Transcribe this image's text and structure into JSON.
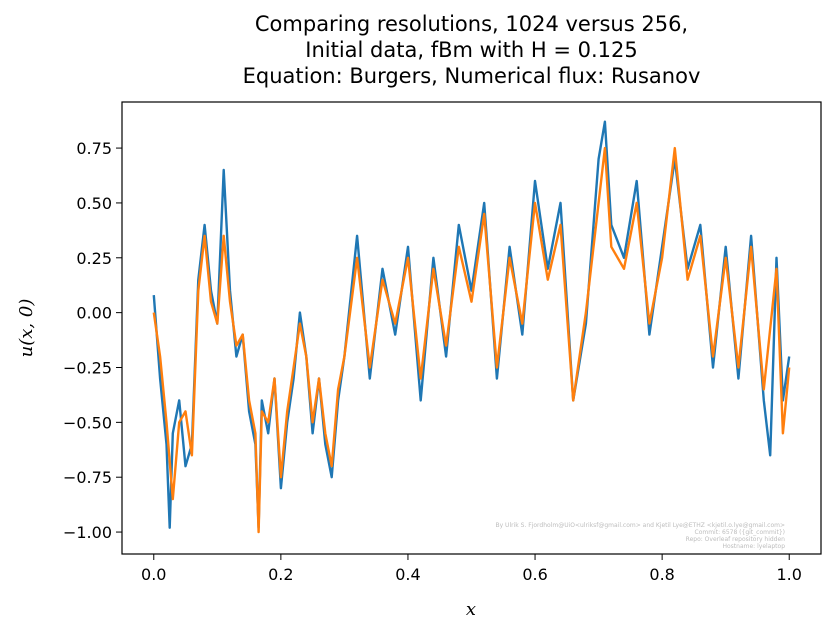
{
  "chart_data": {
    "type": "line",
    "title_lines": [
      "Comparing resolutions, 1024 versus 256,",
      "Initial data, fBm with H = 0.125",
      "Equation: Burgers, Numerical flux: Rusanov"
    ],
    "xlabel": "x",
    "ylabel": "u(x, 0)",
    "xlim": [
      -0.05,
      1.05
    ],
    "ylim": [
      -1.1,
      0.96
    ],
    "xticks": [
      "0.0",
      "0.2",
      "0.4",
      "0.6",
      "0.8",
      "1.0"
    ],
    "yticks": [
      "0.75",
      "0.50",
      "0.25",
      "0.00",
      "−0.25",
      "−0.50",
      "−0.75",
      "−1.00"
    ],
    "grid": false,
    "legend": "none",
    "series": [
      {
        "color": "#1f77b4",
        "resolution": 1024,
        "x": [
          0.0,
          0.01,
          0.02,
          0.025,
          0.03,
          0.04,
          0.05,
          0.06,
          0.07,
          0.08,
          0.09,
          0.1,
          0.11,
          0.12,
          0.13,
          0.14,
          0.15,
          0.16,
          0.165,
          0.17,
          0.18,
          0.19,
          0.2,
          0.21,
          0.22,
          0.23,
          0.24,
          0.25,
          0.26,
          0.27,
          0.28,
          0.29,
          0.3,
          0.32,
          0.34,
          0.36,
          0.38,
          0.4,
          0.42,
          0.44,
          0.46,
          0.48,
          0.5,
          0.52,
          0.54,
          0.56,
          0.58,
          0.6,
          0.62,
          0.64,
          0.66,
          0.68,
          0.7,
          0.71,
          0.72,
          0.74,
          0.76,
          0.78,
          0.8,
          0.82,
          0.84,
          0.86,
          0.88,
          0.9,
          0.92,
          0.94,
          0.96,
          0.97,
          0.98,
          0.99,
          1.0
        ],
        "values": [
          0.08,
          -0.3,
          -0.6,
          -0.98,
          -0.55,
          -0.4,
          -0.7,
          -0.6,
          0.15,
          0.4,
          0.1,
          -0.05,
          0.65,
          0.1,
          -0.2,
          -0.1,
          -0.45,
          -0.6,
          -0.98,
          -0.4,
          -0.55,
          -0.3,
          -0.8,
          -0.5,
          -0.3,
          0.0,
          -0.2,
          -0.55,
          -0.3,
          -0.6,
          -0.75,
          -0.4,
          -0.2,
          0.35,
          -0.3,
          0.2,
          -0.1,
          0.3,
          -0.4,
          0.25,
          -0.2,
          0.4,
          0.1,
          0.5,
          -0.3,
          0.3,
          -0.1,
          0.6,
          0.2,
          0.5,
          -0.4,
          -0.05,
          0.7,
          0.87,
          0.4,
          0.25,
          0.6,
          -0.1,
          0.3,
          0.7,
          0.2,
          0.4,
          -0.25,
          0.3,
          -0.3,
          0.35,
          -0.4,
          -0.65,
          0.25,
          -0.4,
          -0.2
        ]
      },
      {
        "color": "#ff7f0e",
        "resolution": 256,
        "x": [
          0.0,
          0.01,
          0.02,
          0.03,
          0.04,
          0.05,
          0.06,
          0.07,
          0.08,
          0.09,
          0.1,
          0.11,
          0.12,
          0.13,
          0.14,
          0.15,
          0.16,
          0.165,
          0.17,
          0.18,
          0.19,
          0.2,
          0.21,
          0.22,
          0.23,
          0.24,
          0.25,
          0.26,
          0.27,
          0.28,
          0.29,
          0.3,
          0.32,
          0.34,
          0.36,
          0.38,
          0.4,
          0.42,
          0.44,
          0.46,
          0.48,
          0.5,
          0.52,
          0.54,
          0.56,
          0.58,
          0.6,
          0.62,
          0.64,
          0.66,
          0.68,
          0.7,
          0.71,
          0.72,
          0.74,
          0.76,
          0.78,
          0.8,
          0.82,
          0.84,
          0.86,
          0.88,
          0.9,
          0.92,
          0.94,
          0.96,
          0.98,
          0.99,
          1.0
        ],
        "values": [
          0.0,
          -0.2,
          -0.5,
          -0.85,
          -0.5,
          -0.45,
          -0.65,
          0.1,
          0.35,
          0.05,
          -0.05,
          0.35,
          0.05,
          -0.15,
          -0.1,
          -0.4,
          -0.55,
          -1.0,
          -0.45,
          -0.5,
          -0.3,
          -0.75,
          -0.45,
          -0.25,
          -0.05,
          -0.2,
          -0.5,
          -0.3,
          -0.55,
          -0.7,
          -0.35,
          -0.2,
          0.25,
          -0.25,
          0.15,
          -0.05,
          0.25,
          -0.3,
          0.2,
          -0.15,
          0.3,
          0.05,
          0.45,
          -0.25,
          0.25,
          -0.05,
          0.5,
          0.15,
          0.4,
          -0.4,
          0.0,
          0.5,
          0.75,
          0.3,
          0.2,
          0.5,
          -0.05,
          0.25,
          0.75,
          0.15,
          0.35,
          -0.2,
          0.25,
          -0.25,
          0.3,
          -0.35,
          0.2,
          -0.55,
          -0.25
        ]
      }
    ]
  },
  "watermark": {
    "lines": [
      "By Ulrik S. Fjordholm@UiO<ulriksf@gmail.com> and Kjetil Lye@ETHZ <kjetil.o.lye@gmail.com>",
      "Commit: 6578 ({git_commit})",
      "Repo: Overleaf repository hidden",
      "Hostname: lyelaptop"
    ]
  }
}
